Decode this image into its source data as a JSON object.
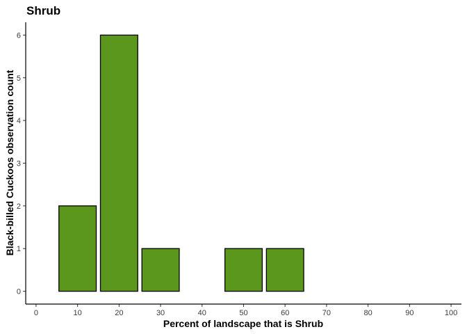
{
  "chart_data": {
    "type": "bar",
    "title": "Shrub",
    "xlabel": "Percent of landscape that is Shrub",
    "ylabel": "Black-billed Cuckoos observation count",
    "x": [
      10,
      20,
      30,
      50,
      60
    ],
    "values": [
      2,
      6,
      1,
      1,
      1
    ],
    "bar_width": 9,
    "xlim": [
      -2.5,
      102.5
    ],
    "ylim": [
      -0.3,
      6.3
    ],
    "xticks": [
      0,
      10,
      20,
      30,
      40,
      50,
      60,
      70,
      80,
      90,
      100
    ],
    "yticks": [
      0,
      1,
      2,
      3,
      4,
      5,
      6
    ],
    "grid": false,
    "bar_color": "#5b961d",
    "bar_edge_color": "#000000"
  }
}
